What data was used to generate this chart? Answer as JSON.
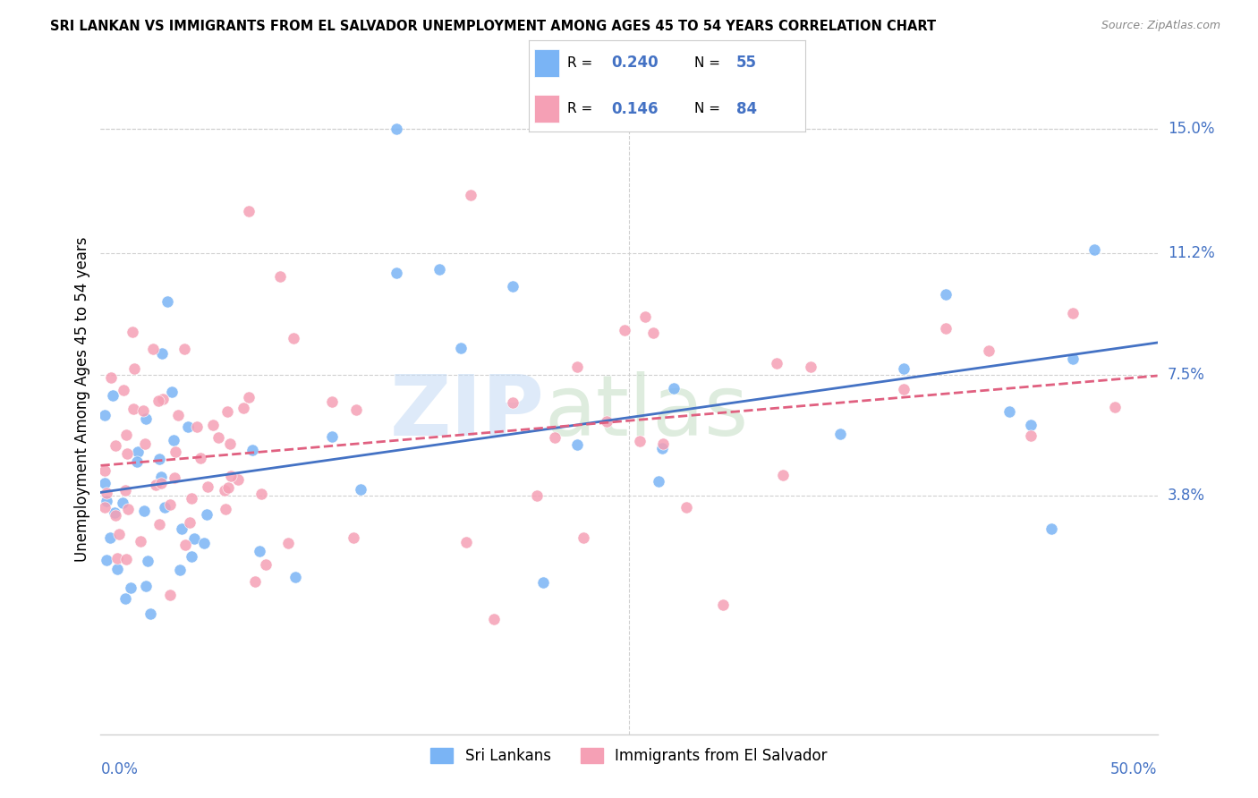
{
  "title": "SRI LANKAN VS IMMIGRANTS FROM EL SALVADOR UNEMPLOYMENT AMONG AGES 45 TO 54 YEARS CORRELATION CHART",
  "source": "Source: ZipAtlas.com",
  "ylabel": "Unemployment Among Ages 45 to 54 years",
  "xlim": [
    0.0,
    50.0
  ],
  "ylim": [
    -3.5,
    17.0
  ],
  "yticks": [
    3.8,
    7.5,
    11.2,
    15.0
  ],
  "ytick_labels": [
    "3.8%",
    "7.5%",
    "11.2%",
    "15.0%"
  ],
  "watermark": "ZIPatlas",
  "legend_blue_R": "0.240",
  "legend_blue_N": "55",
  "legend_pink_R": "0.146",
  "legend_pink_N": "84",
  "blue_color": "#7ab4f5",
  "pink_color": "#f5a0b5",
  "trend_blue": "#4472c4",
  "trend_pink": "#e06080",
  "grid_color": "#d0d0d0",
  "blue_scatter_seed": 10,
  "pink_scatter_seed": 20
}
